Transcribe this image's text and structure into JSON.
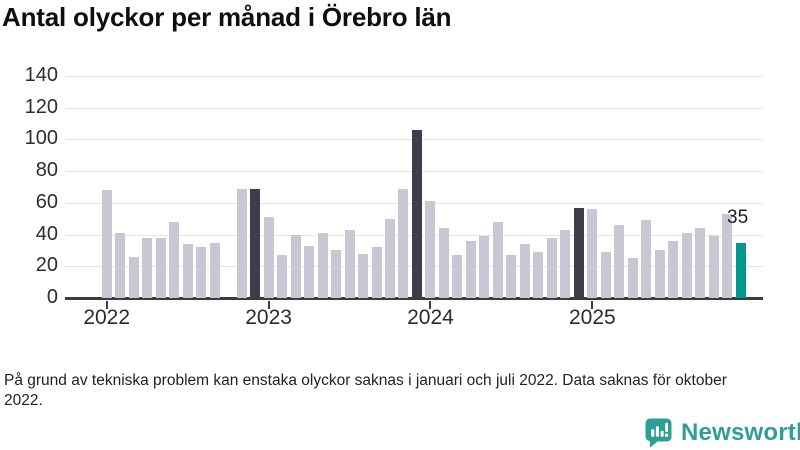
{
  "title": "Antal olyckor per månad i Örebro län",
  "footnote": "På grund av tekniska problem kan enstaka olyckor saknas i januari och juli 2022. Data saknas för oktober 2022.",
  "annotation": {
    "last_value_label": "35"
  },
  "branding": {
    "name": "Newsworthy",
    "icon": "bar-chart-speech-bubble-icon",
    "color": "#2F9E96"
  },
  "colors": {
    "bar_default": "#C9C7D3",
    "bar_highlight_dark": "#3F3D4C",
    "bar_highlight_teal": "#00988C",
    "axis": "#3C3C3C",
    "gridline": "#E4E4E8",
    "background": "#FFFFFF"
  },
  "chart_data": {
    "type": "bar",
    "title": "Antal olyckor per månad i Örebro län",
    "xlabel": "",
    "ylabel": "",
    "ylim": [
      0,
      140
    ],
    "y_ticks": [
      0,
      20,
      40,
      60,
      80,
      100,
      120,
      140
    ],
    "x_tick_labels": [
      "2022",
      "2023",
      "2024",
      "2025"
    ],
    "grid": true,
    "legend": "none",
    "missing_data": [
      "2022-10"
    ],
    "points": [
      {
        "month": "2022-01",
        "value": 68,
        "style": "default"
      },
      {
        "month": "2022-02",
        "value": 41,
        "style": "default"
      },
      {
        "month": "2022-03",
        "value": 26,
        "style": "default"
      },
      {
        "month": "2022-04",
        "value": 38,
        "style": "default"
      },
      {
        "month": "2022-05",
        "value": 38,
        "style": "default"
      },
      {
        "month": "2022-06",
        "value": 48,
        "style": "default"
      },
      {
        "month": "2022-07",
        "value": 34,
        "style": "default"
      },
      {
        "month": "2022-08",
        "value": 32,
        "style": "default"
      },
      {
        "month": "2022-09",
        "value": 35,
        "style": "default"
      },
      {
        "month": "2022-10",
        "value": null,
        "style": "default"
      },
      {
        "month": "2022-11",
        "value": 69,
        "style": "default"
      },
      {
        "month": "2022-12",
        "value": 69,
        "style": "dark"
      },
      {
        "month": "2023-01",
        "value": 51,
        "style": "default"
      },
      {
        "month": "2023-02",
        "value": 27,
        "style": "default"
      },
      {
        "month": "2023-03",
        "value": 40,
        "style": "default"
      },
      {
        "month": "2023-04",
        "value": 33,
        "style": "default"
      },
      {
        "month": "2023-05",
        "value": 41,
        "style": "default"
      },
      {
        "month": "2023-06",
        "value": 30,
        "style": "default"
      },
      {
        "month": "2023-07",
        "value": 43,
        "style": "default"
      },
      {
        "month": "2023-08",
        "value": 28,
        "style": "default"
      },
      {
        "month": "2023-09",
        "value": 32,
        "style": "default"
      },
      {
        "month": "2023-10",
        "value": 50,
        "style": "default"
      },
      {
        "month": "2023-11",
        "value": 69,
        "style": "default"
      },
      {
        "month": "2023-12",
        "value": 106,
        "style": "dark"
      },
      {
        "month": "2024-01",
        "value": 61,
        "style": "default"
      },
      {
        "month": "2024-02",
        "value": 44,
        "style": "default"
      },
      {
        "month": "2024-03",
        "value": 27,
        "style": "default"
      },
      {
        "month": "2024-04",
        "value": 36,
        "style": "default"
      },
      {
        "month": "2024-05",
        "value": 39,
        "style": "default"
      },
      {
        "month": "2024-06",
        "value": 48,
        "style": "default"
      },
      {
        "month": "2024-07",
        "value": 27,
        "style": "default"
      },
      {
        "month": "2024-08",
        "value": 34,
        "style": "default"
      },
      {
        "month": "2024-09",
        "value": 29,
        "style": "default"
      },
      {
        "month": "2024-10",
        "value": 38,
        "style": "default"
      },
      {
        "month": "2024-11",
        "value": 43,
        "style": "default"
      },
      {
        "month": "2024-12",
        "value": 57,
        "style": "dark"
      },
      {
        "month": "2025-01",
        "value": 56,
        "style": "default"
      },
      {
        "month": "2025-02",
        "value": 29,
        "style": "default"
      },
      {
        "month": "2025-03",
        "value": 46,
        "style": "default"
      },
      {
        "month": "2025-04",
        "value": 25,
        "style": "default"
      },
      {
        "month": "2025-05",
        "value": 49,
        "style": "default"
      },
      {
        "month": "2025-06",
        "value": 30,
        "style": "default"
      },
      {
        "month": "2025-07",
        "value": 36,
        "style": "default"
      },
      {
        "month": "2025-08",
        "value": 41,
        "style": "default"
      },
      {
        "month": "2025-09",
        "value": 44,
        "style": "default"
      },
      {
        "month": "2025-10",
        "value": 39,
        "style": "default"
      },
      {
        "month": "2025-11",
        "value": 53,
        "style": "default"
      },
      {
        "month": "2025-12",
        "value": 35,
        "style": "teal"
      }
    ]
  }
}
